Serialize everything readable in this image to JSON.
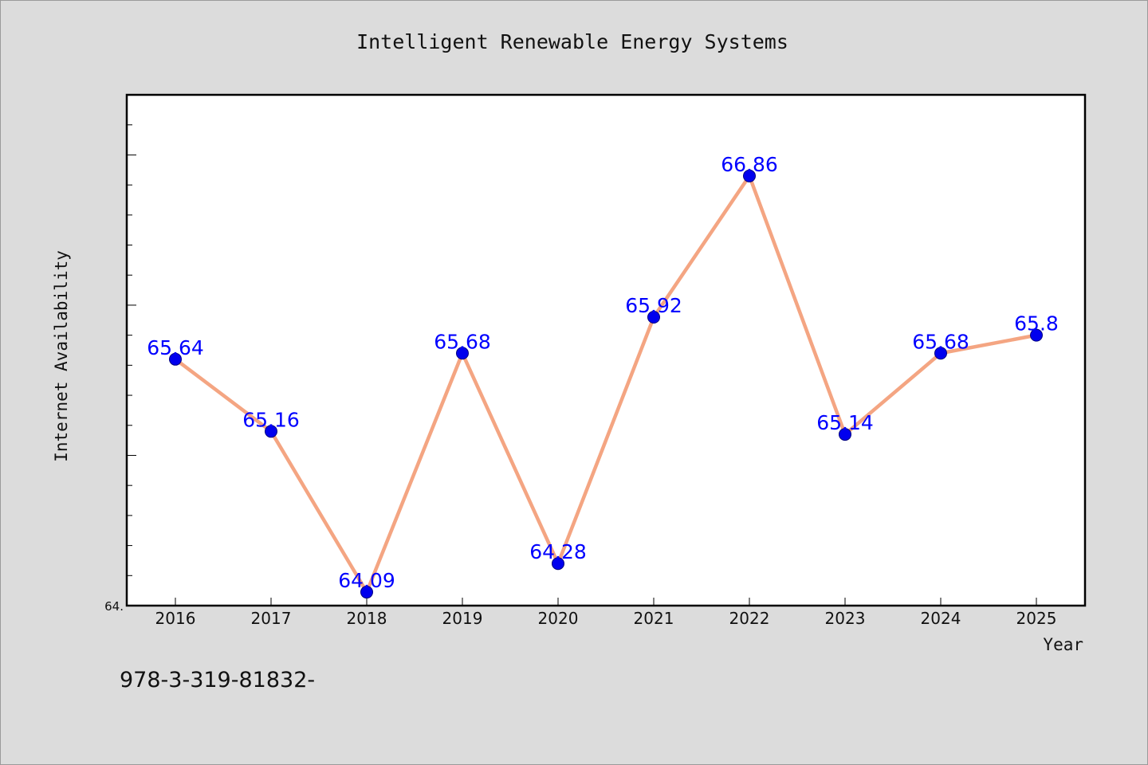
{
  "chart_data": {
    "type": "line",
    "title": "Intelligent Renewable Energy Systems",
    "xlabel": "Year",
    "ylabel": "Internet Availability",
    "categories": [
      "2016",
      "2017",
      "2018",
      "2019",
      "2020",
      "2021",
      "2022",
      "2023",
      "2024",
      "2025"
    ],
    "series": [
      {
        "values": [
          65.64,
          65.16,
          64.09,
          65.68,
          64.28,
          65.92,
          66.86,
          65.14,
          65.68,
          65.8
        ]
      }
    ],
    "data_labels": [
      "65.64",
      "65.16",
      "64.09",
      "65.68",
      "64.28",
      "65.92",
      "66.86",
      "65.14",
      "65.68",
      "65.8"
    ],
    "ylim": [
      64.0,
      67.4
    ],
    "y_tick_label": "64.",
    "grid": false,
    "colors": {
      "line": "#f4a582",
      "marker": "#0000ee",
      "marker_edge": "#000080",
      "data_label": "#0000ff",
      "plot_background": "#ffffff",
      "figure_background": "#dcdcdc"
    }
  },
  "footer": {
    "text": "978-3-319-81832-"
  }
}
